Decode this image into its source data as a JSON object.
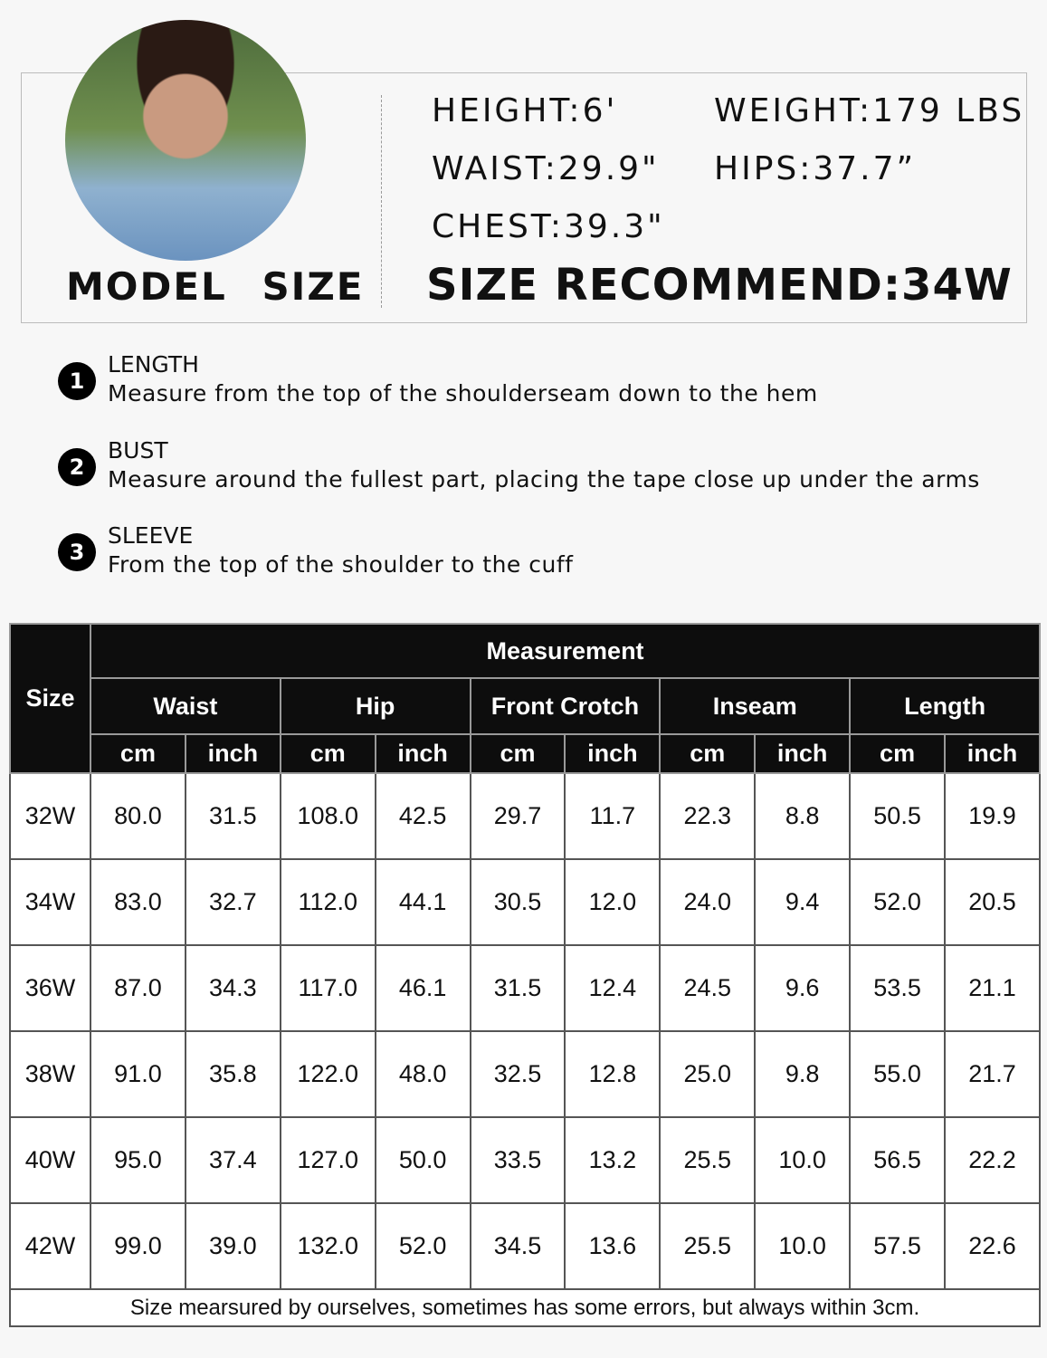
{
  "model": {
    "label": "MODEL  SIZE",
    "stats": {
      "height": "HEIGHT:6'",
      "weight": "WEIGHT:179 LBS",
      "waist": "WAIST:29.9\"",
      "hips": "HIPS:37.7”",
      "chest": "CHEST:39.3\""
    },
    "recommend": "SIZE RECOMMEND:34W"
  },
  "guide": [
    {
      "num": "1",
      "title": "LENGTH",
      "desc": "Measure from the top of the shoulderseam down to the hem"
    },
    {
      "num": "2",
      "title": "BUST",
      "desc": "Measure around the fullest part, placing the tape close up under the arms"
    },
    {
      "num": "3",
      "title": "SLEEVE",
      "desc": "From the top of the shoulder to the cuff"
    }
  ],
  "table": {
    "size_header": "Size",
    "group_header": "Measurement",
    "columns": [
      "Waist",
      "Hip",
      "Front Crotch",
      "Inseam",
      "Length"
    ],
    "units": [
      "cm",
      "inch"
    ],
    "rows": [
      [
        "32W",
        "80.0",
        "31.5",
        "108.0",
        "42.5",
        "29.7",
        "11.7",
        "22.3",
        "8.8",
        "50.5",
        "19.9"
      ],
      [
        "34W",
        "83.0",
        "32.7",
        "112.0",
        "44.1",
        "30.5",
        "12.0",
        "24.0",
        "9.4",
        "52.0",
        "20.5"
      ],
      [
        "36W",
        "87.0",
        "34.3",
        "117.0",
        "46.1",
        "31.5",
        "12.4",
        "24.5",
        "9.6",
        "53.5",
        "21.1"
      ],
      [
        "38W",
        "91.0",
        "35.8",
        "122.0",
        "48.0",
        "32.5",
        "12.8",
        "25.0",
        "9.8",
        "55.0",
        "21.7"
      ],
      [
        "40W",
        "95.0",
        "37.4",
        "127.0",
        "50.0",
        "33.5",
        "13.2",
        "25.5",
        "10.0",
        "56.5",
        "22.2"
      ],
      [
        "42W",
        "99.0",
        "39.0",
        "132.0",
        "52.0",
        "34.5",
        "13.6",
        "25.5",
        "10.0",
        "57.5",
        "22.6"
      ]
    ],
    "note": "Size mearsured by ourselves, sometimes has some errors, but always within 3cm."
  }
}
